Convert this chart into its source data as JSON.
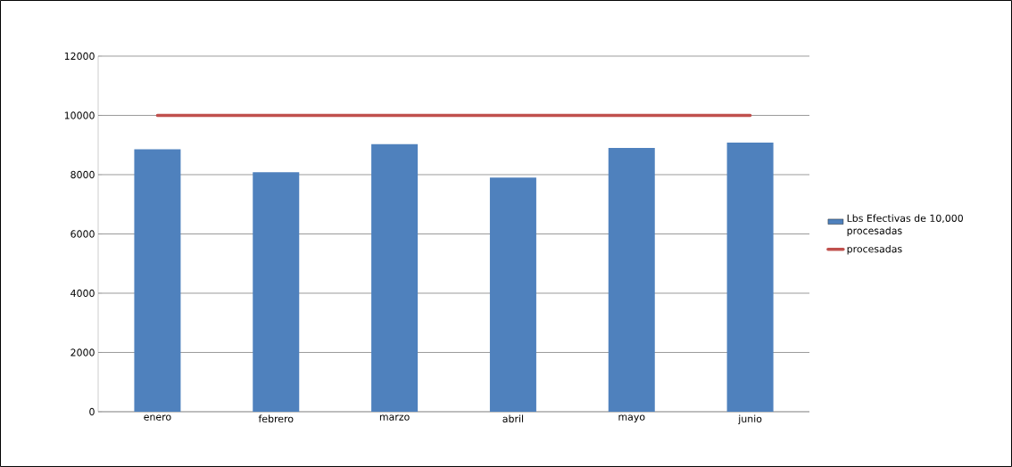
{
  "chart_data": {
    "type": "bar",
    "categories": [
      "enero",
      "febrero",
      "marzo",
      "abril",
      "mayo",
      "junio"
    ],
    "series": [
      {
        "name": "Lbs Efectivas de 10,000 procesadas",
        "color": "#4f81bd",
        "values": [
          8860,
          8080,
          9030,
          7900,
          8900,
          9080
        ]
      },
      {
        "name": "procesadas",
        "type": "line",
        "color": "#c0504d",
        "values": [
          10000,
          10000,
          10000,
          10000,
          10000,
          10000
        ]
      }
    ],
    "ylim": [
      0,
      12000
    ],
    "yticks": [
      0,
      2000,
      4000,
      6000,
      8000,
      10000,
      12000
    ],
    "grid": "y",
    "legend": "right"
  }
}
